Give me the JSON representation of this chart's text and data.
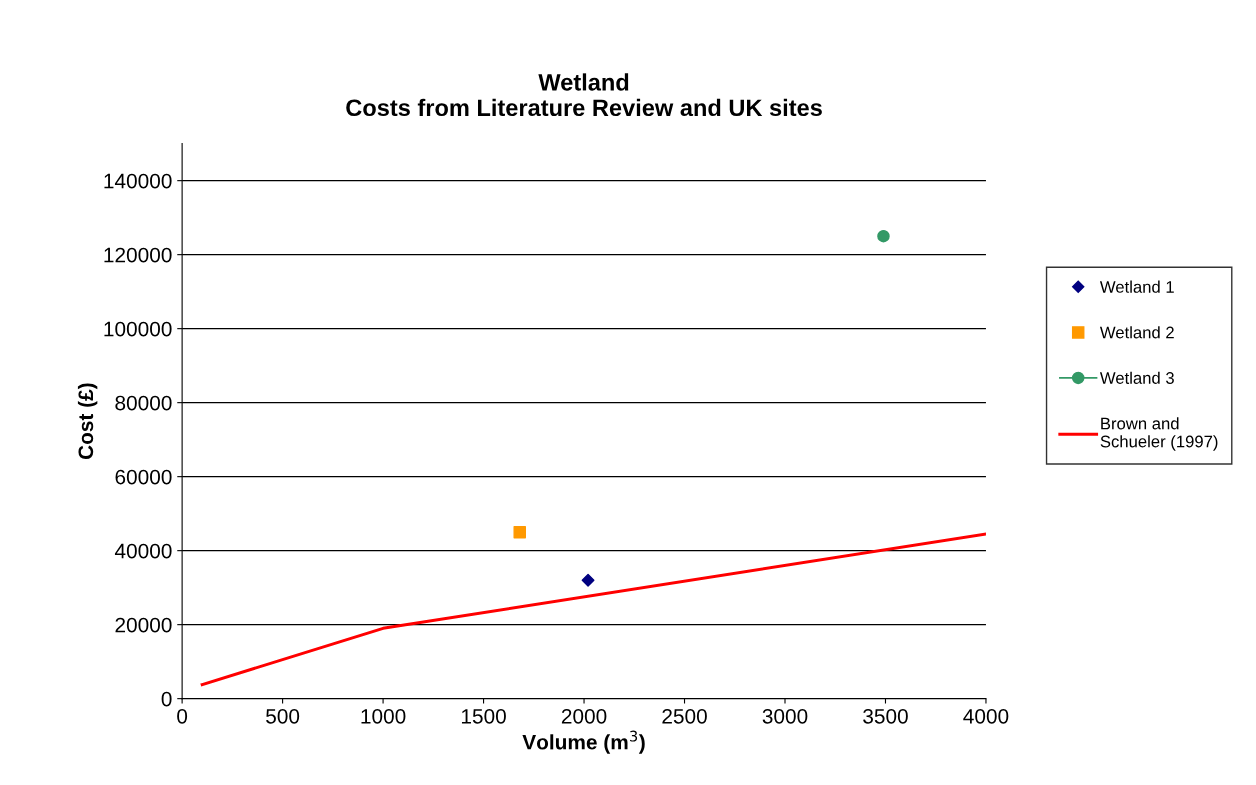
{
  "chart_data": {
    "type": "scatter",
    "title": "Wetland\nCosts from Literature Review and UK sites",
    "xlabel": "Volume (m$^{3}$)",
    "ylabel": "Cost (£)",
    "series": [
      {
        "name": "Wetland 1",
        "marker": "diamond",
        "color": "#000080",
        "x": [
          2020
        ],
        "values": [
          32000
        ]
      },
      {
        "name": "Wetland 2",
        "marker": "square",
        "color": "#ff9900",
        "x": [
          1680
        ],
        "values": [
          45000
        ]
      },
      {
        "name": "Wetland 3",
        "type": "line",
        "marker": "circle",
        "color": "#339966",
        "x": [
          3490
        ],
        "values": [
          125000
        ]
      },
      {
        "name": "Brown and\nSchueler (1997)",
        "type": "line",
        "marker": "none",
        "color": "#ff0000",
        "x": [
          100,
          1000,
          4000
        ],
        "values": [
          3800,
          19000,
          44500
        ]
      }
    ],
    "xlim": [
      0,
      4000
    ],
    "xticks": [
      0,
      500,
      1000,
      1500,
      2000,
      2500,
      3000,
      3500,
      4000
    ],
    "ylim": [
      0,
      150000
    ],
    "yticks": [
      0,
      20000,
      40000,
      60000,
      80000,
      100000,
      120000,
      140000
    ],
    "grid": "y",
    "legend": "right"
  }
}
